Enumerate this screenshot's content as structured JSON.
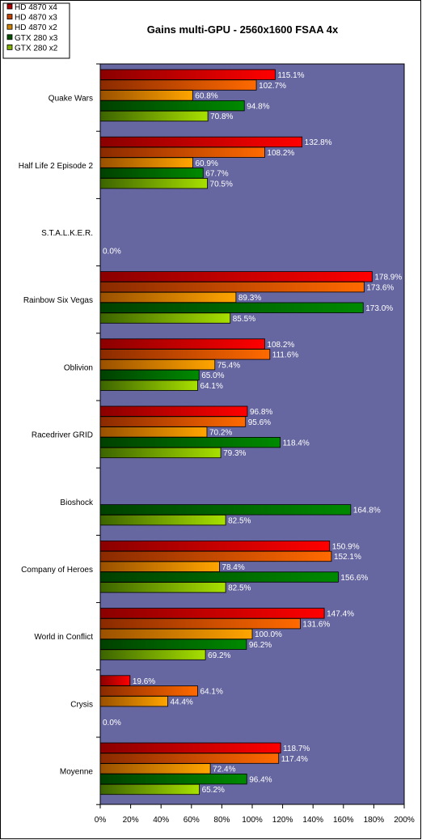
{
  "chart_data": {
    "type": "bar",
    "orientation": "horizontal",
    "title": "Gains multi-GPU - 2560x1600 FSAA 4x",
    "xlabel": "",
    "ylabel": "",
    "xlim": [
      0,
      200
    ],
    "x_ticks": [
      "0%",
      "20%",
      "40%",
      "60%",
      "80%",
      "100%",
      "120%",
      "140%",
      "160%",
      "180%",
      "200%"
    ],
    "value_suffix": "%",
    "legend_position": "top-left",
    "plot_background": "#6666a0",
    "categories": [
      "Quake Wars",
      "Half Life 2 Episode 2",
      "S.T.A.L.K.E.R.",
      "Rainbow Six Vegas",
      "Oblivion",
      "Racedriver GRID",
      "Bioshock",
      "Company of Heroes",
      "World in Conflict",
      "Crysis",
      "Moyenne"
    ],
    "series": [
      {
        "name": "HD 4870 x4",
        "color_dark": "#8a0000",
        "color": "#ff0000",
        "legend_color": "#b00000",
        "values": [
          115.1,
          132.8,
          null,
          178.9,
          108.2,
          96.8,
          null,
          150.9,
          147.4,
          19.6,
          118.7
        ]
      },
      {
        "name": "HD 4870 x3",
        "color_dark": "#8a2a00",
        "color": "#ff6a00",
        "legend_color": "#c04000",
        "values": [
          102.7,
          108.2,
          null,
          173.6,
          111.6,
          95.6,
          null,
          152.1,
          131.6,
          64.1,
          117.4
        ]
      },
      {
        "name": "HD 4870 x2",
        "color_dark": "#9a5000",
        "color": "#ffa500",
        "legend_color": "#d08000",
        "values": [
          60.8,
          60.9,
          null,
          89.3,
          75.4,
          70.2,
          null,
          78.4,
          100.0,
          44.4,
          72.4
        ]
      },
      {
        "name": "GTX 280 x3",
        "color_dark": "#004000",
        "color": "#008a00",
        "legend_color": "#005000",
        "values": [
          94.8,
          67.7,
          null,
          173.0,
          65.0,
          118.4,
          164.8,
          156.6,
          96.2,
          null,
          96.4
        ]
      },
      {
        "name": "GTX 280 x2",
        "color_dark": "#3c6400",
        "color": "#a8e000",
        "legend_color": "#80b000",
        "values": [
          70.8,
          70.5,
          null,
          85.5,
          64.1,
          79.3,
          82.5,
          82.5,
          69.2,
          null,
          65.2
        ]
      }
    ],
    "value_labels": [
      [
        "115.1%",
        "102.7%",
        "60.8%",
        "94.8%",
        "70.8%"
      ],
      [
        "132.8%",
        "108.2%",
        "60.9%",
        "67.7%",
        "70.5%"
      ],
      [
        "0.0%"
      ],
      [
        "178.9%",
        "173.6%",
        "89.3%",
        "173.0%",
        "85.5%"
      ],
      [
        "108.2%",
        "111.6%",
        "75.4%",
        "65.0%",
        "64.1%"
      ],
      [
        "96.8%",
        "95.6%",
        "70.2%",
        "118.4%",
        "79.3%"
      ],
      [
        "164.8%",
        "82.5%"
      ],
      [
        "150.9%",
        "152.1%",
        "78.4%",
        "156.6%",
        "82.5%"
      ],
      [
        "147.4%",
        "131.6%",
        "100.0%",
        "96.2%",
        "69.2%"
      ],
      [
        "19.6%",
        "64.1%",
        "44.4%",
        "0.0%"
      ],
      [
        "118.7%",
        "117.4%",
        "72.4%",
        "96.4%",
        "65.2%"
      ]
    ],
    "value_label_slots": [
      [
        0,
        1,
        2,
        3,
        4
      ],
      [
        0,
        1,
        2,
        3,
        4
      ],
      [
        4
      ],
      [
        0,
        1,
        2,
        3,
        4
      ],
      [
        0,
        1,
        2,
        3,
        4
      ],
      [
        0,
        1,
        2,
        3,
        4
      ],
      [
        3,
        4
      ],
      [
        0,
        1,
        2,
        3,
        4
      ],
      [
        0,
        1,
        2,
        3,
        4
      ],
      [
        0,
        1,
        2,
        4
      ],
      [
        0,
        1,
        2,
        3,
        4
      ]
    ]
  }
}
